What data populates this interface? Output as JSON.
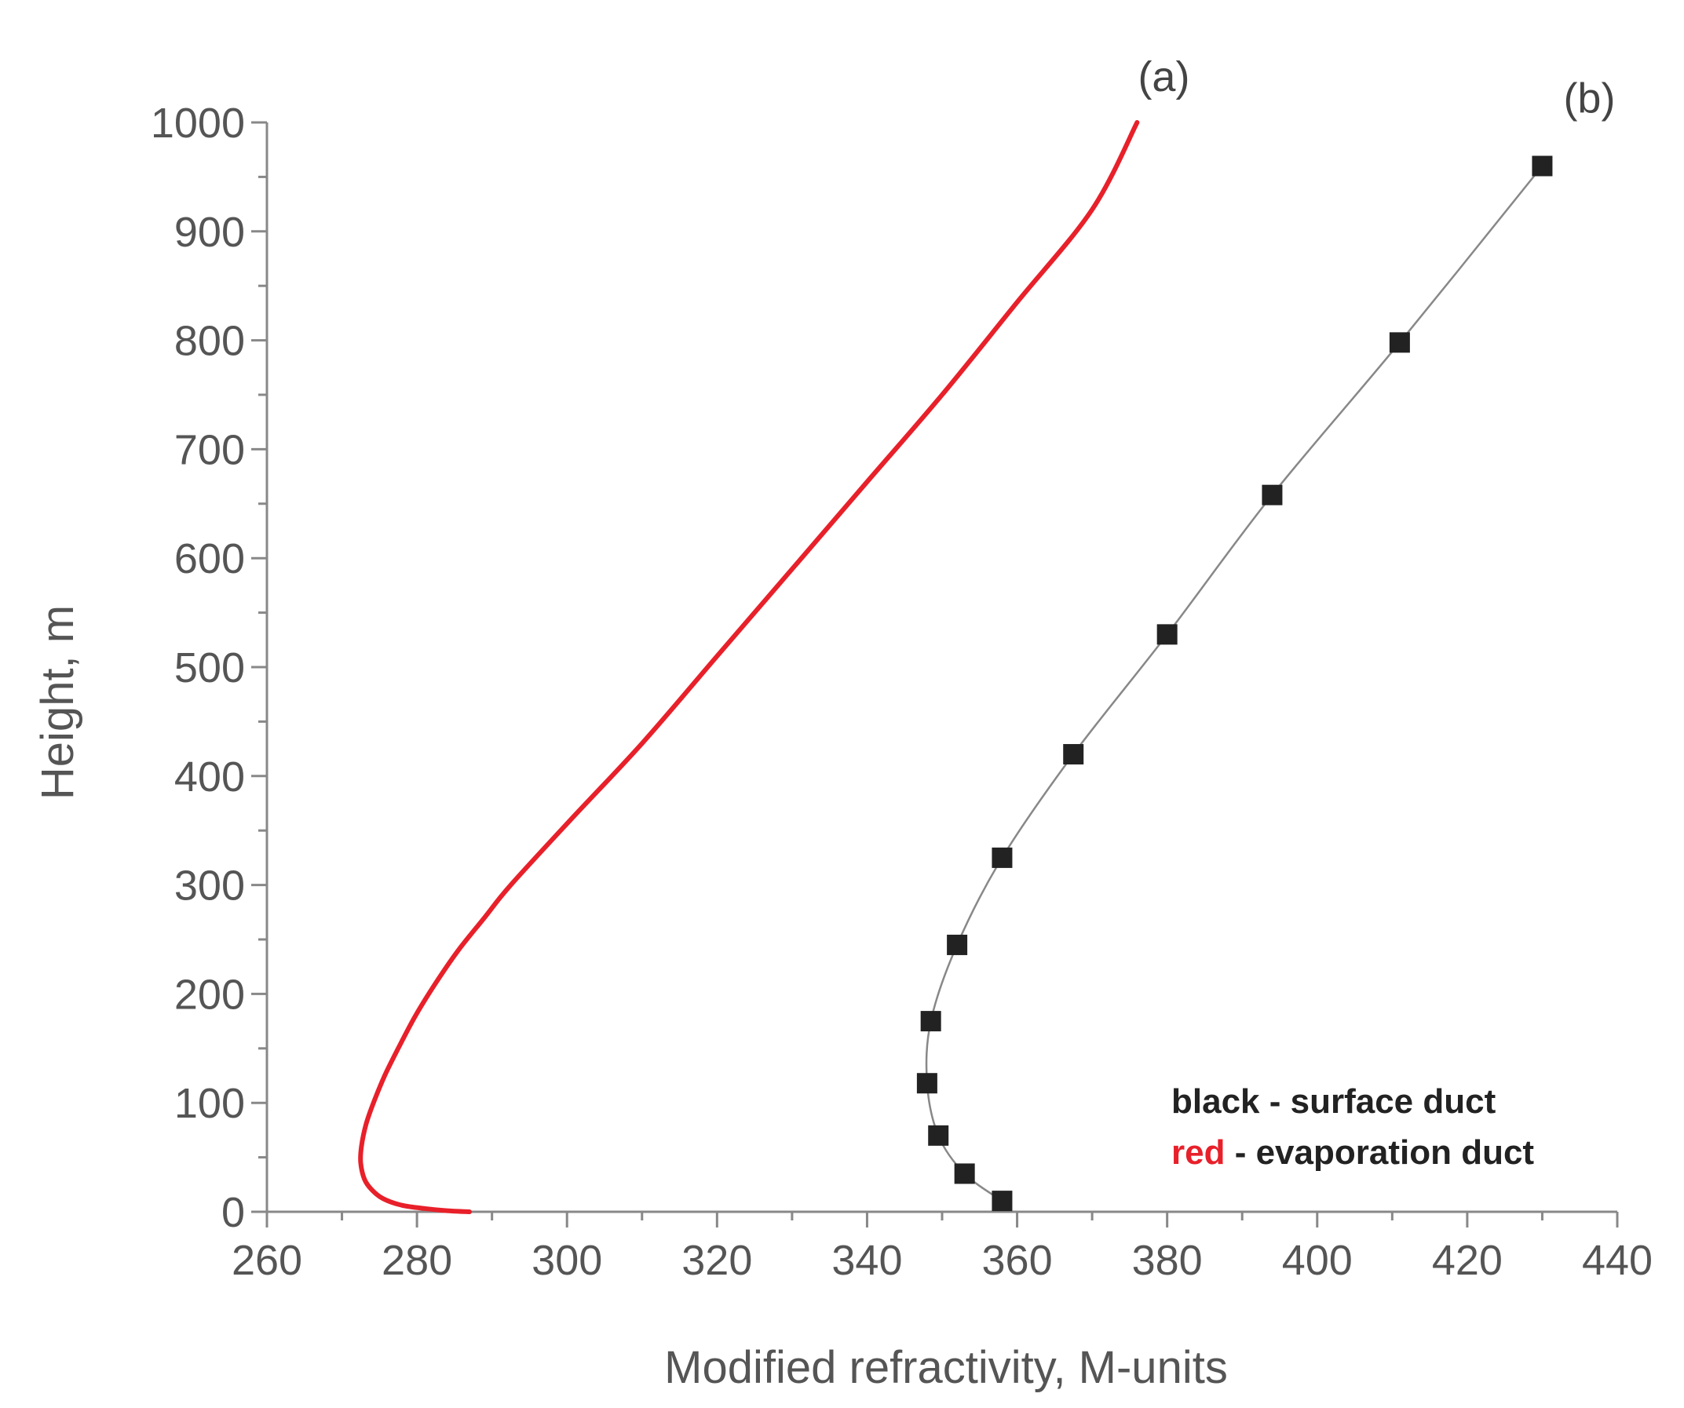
{
  "chart_data": {
    "type": "line",
    "xlabel": "Modified refractivity, M-units",
    "ylabel": "Height, m",
    "xlim": [
      260,
      440
    ],
    "ylim": [
      0,
      1000
    ],
    "xticks": [
      "260",
      "280",
      "300",
      "320",
      "340",
      "360",
      "380",
      "400",
      "420",
      "440"
    ],
    "yticks": [
      "0",
      "100",
      "200",
      "300",
      "400",
      "500",
      "600",
      "700",
      "800",
      "900",
      "1000"
    ],
    "grid": false,
    "legend_position": "bottom-right",
    "legend": [
      {
        "highlight": "black",
        "rest": " - surface duct",
        "color": "#222222"
      },
      {
        "highlight": "red",
        "rest": " - evaporation duct",
        "color": "#e8202a"
      }
    ],
    "series": [
      {
        "label": "(a)",
        "color": "#e8202a",
        "marker": "none",
        "points": [
          [
            287,
            0
          ],
          [
            284,
            1
          ],
          [
            281,
            3
          ],
          [
            278,
            6
          ],
          [
            275.5,
            12
          ],
          [
            274,
            20
          ],
          [
            273,
            30
          ],
          [
            272.5,
            45
          ],
          [
            272.6,
            60
          ],
          [
            273.2,
            80
          ],
          [
            274.2,
            100
          ],
          [
            275.7,
            125
          ],
          [
            277.5,
            150
          ],
          [
            279.8,
            180
          ],
          [
            282.5,
            210
          ],
          [
            285.5,
            240
          ],
          [
            289,
            270
          ],
          [
            292.5,
            300
          ],
          [
            300.5,
            360
          ],
          [
            310,
            430
          ],
          [
            320,
            510
          ],
          [
            330,
            590
          ],
          [
            340,
            670
          ],
          [
            350,
            750
          ],
          [
            360,
            835
          ],
          [
            370,
            920
          ],
          [
            376,
            1000
          ]
        ]
      },
      {
        "label": "(b)",
        "color": "#222222",
        "line_color": "#888888",
        "marker": "square",
        "points": [
          [
            358,
            10
          ],
          [
            353,
            35
          ],
          [
            349.5,
            70
          ],
          [
            348,
            118
          ],
          [
            348.5,
            175
          ],
          [
            352,
            245
          ],
          [
            358,
            325
          ],
          [
            367.5,
            420
          ],
          [
            380,
            530
          ],
          [
            394,
            658
          ],
          [
            411,
            798
          ],
          [
            430,
            960
          ]
        ]
      }
    ]
  }
}
